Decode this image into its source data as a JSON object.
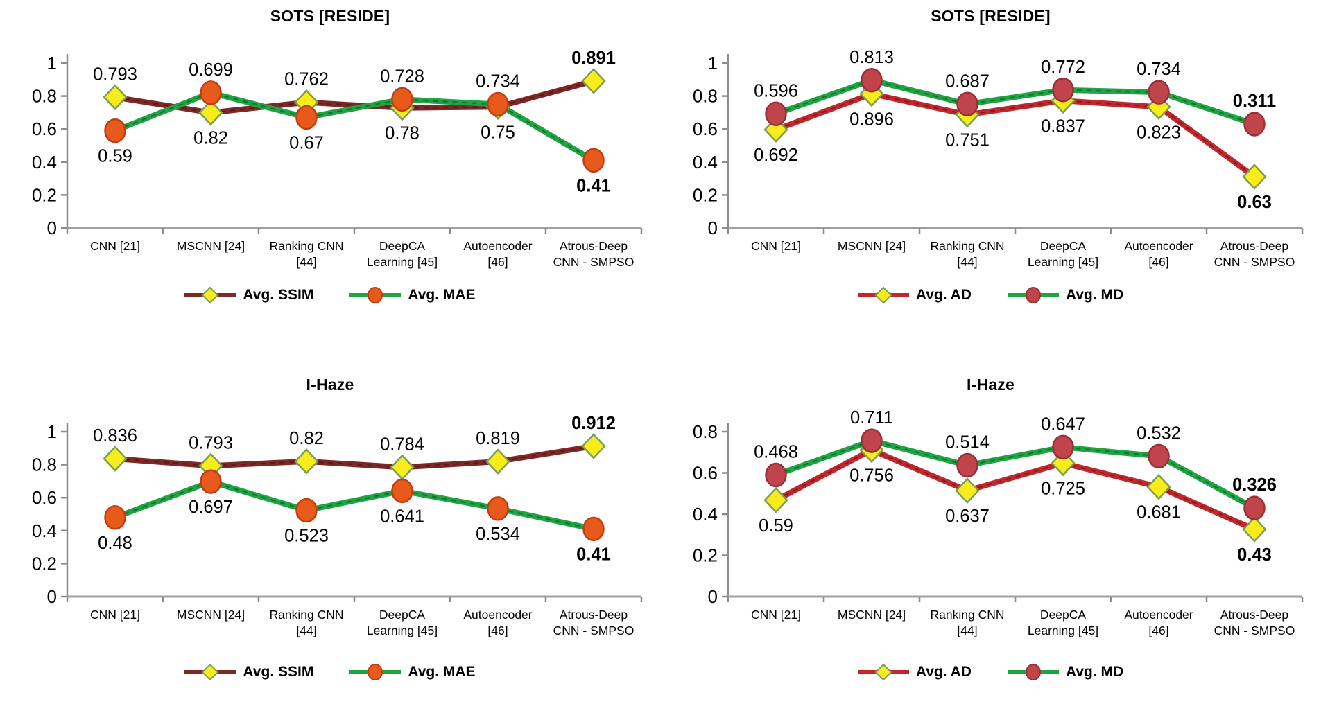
{
  "page": {
    "background": "#ffffff"
  },
  "chart_data": [
    {
      "type": "line",
      "title": "SOTS [RESIDE]",
      "categories": [
        [
          "CNN [21]"
        ],
        [
          "MSCNN [24]"
        ],
        [
          "Ranking CNN",
          "[44]"
        ],
        [
          "DeepCA",
          "Learning [45]"
        ],
        [
          "Autoencoder",
          "[46]"
        ],
        [
          "Atrous-Deep",
          "CNN - SMPSO"
        ]
      ],
      "ylim": [
        0,
        1
      ],
      "yticks": [
        0,
        0.2,
        0.4,
        0.6,
        0.8,
        1
      ],
      "grid": false,
      "legend_position": "bottom",
      "last_point_bold": true,
      "series": [
        {
          "name": "Avg. SSIM",
          "values": [
            0.793,
            0.699,
            0.762,
            0.728,
            0.734,
            0.891
          ],
          "line_color": "#7d2826",
          "marker": "diamond",
          "marker_fill": "#f8ec1a",
          "marker_stroke": "#7b9e55",
          "data_label_position": "above"
        },
        {
          "name": "Avg. MAE",
          "values": [
            0.59,
            0.82,
            0.67,
            0.78,
            0.75,
            0.41
          ],
          "line_color": "#1ea442",
          "marker": "circle",
          "marker_fill": "#e8591c",
          "marker_stroke": "#bf3f12",
          "data_label_position": "below"
        }
      ]
    },
    {
      "type": "line",
      "title": "SOTS [RESIDE]",
      "categories": [
        [
          "CNN [21]"
        ],
        [
          "MSCNN [24]"
        ],
        [
          "Ranking CNN",
          "[44]"
        ],
        [
          "DeepCA",
          "Learning [45]"
        ],
        [
          "Autoencoder",
          "[46]"
        ],
        [
          "Atrous-Deep",
          "CNN - SMPSO"
        ]
      ],
      "ylim": [
        0,
        1
      ],
      "yticks": [
        0,
        0.2,
        0.4,
        0.6,
        0.8,
        1
      ],
      "grid": false,
      "legend_position": "bottom",
      "last_point_bold": true,
      "series": [
        {
          "name": "Avg. AD",
          "values": [
            0.596,
            0.813,
            0.687,
            0.772,
            0.734,
            0.311
          ],
          "line_color": "#c1272d",
          "marker": "diamond",
          "marker_fill": "#f8ec1a",
          "marker_stroke": "#7b9e55",
          "data_label_position": "above"
        },
        {
          "name": "Avg. MD",
          "values": [
            0.692,
            0.896,
            0.751,
            0.837,
            0.823,
            0.63
          ],
          "line_color": "#1ea442",
          "marker": "circle",
          "marker_fill": "#c2444b",
          "marker_stroke": "#96303a",
          "data_label_position": "below"
        }
      ]
    },
    {
      "type": "line",
      "title": "I-Haze",
      "categories": [
        [
          "CNN [21]"
        ],
        [
          "MSCNN [24]"
        ],
        [
          "Ranking CNN",
          "[44]"
        ],
        [
          "DeepCA",
          "Learning [45]"
        ],
        [
          "Autoencoder",
          "[46]"
        ],
        [
          "Atrous-Deep",
          "CNN - SMPSO"
        ]
      ],
      "ylim": [
        0,
        1
      ],
      "yticks": [
        0,
        0.2,
        0.4,
        0.6,
        0.8,
        1
      ],
      "grid": false,
      "legend_position": "bottom",
      "last_point_bold": true,
      "series": [
        {
          "name": "Avg. SSIM",
          "values": [
            0.836,
            0.793,
            0.82,
            0.784,
            0.819,
            0.912
          ],
          "line_color": "#7d2826",
          "marker": "diamond",
          "marker_fill": "#f8ec1a",
          "marker_stroke": "#7b9e55",
          "data_label_position": "above"
        },
        {
          "name": "Avg. MAE",
          "values": [
            0.48,
            0.697,
            0.523,
            0.641,
            0.534,
            0.41
          ],
          "line_color": "#1ea442",
          "marker": "circle",
          "marker_fill": "#e8591c",
          "marker_stroke": "#bf3f12",
          "data_label_position": "below"
        }
      ]
    },
    {
      "type": "line",
      "title": "I-Haze",
      "categories": [
        [
          "CNN [21]"
        ],
        [
          "MSCNN [24]"
        ],
        [
          "Ranking CNN",
          "[44]"
        ],
        [
          "DeepCA",
          "Learning [45]"
        ],
        [
          "Autoencoder",
          "[46]"
        ],
        [
          "Atrous-Deep",
          "CNN - SMPSO"
        ]
      ],
      "ylim": [
        0,
        0.8
      ],
      "yticks": [
        0,
        0.2,
        0.4,
        0.6,
        0.8
      ],
      "grid": false,
      "legend_position": "bottom",
      "last_point_bold": true,
      "series": [
        {
          "name": "Avg. AD",
          "values": [
            0.468,
            0.711,
            0.514,
            0.647,
            0.532,
            0.326
          ],
          "line_color": "#c1272d",
          "marker": "diamond",
          "marker_fill": "#f8ec1a",
          "marker_stroke": "#7b9e55",
          "data_label_position": "above"
        },
        {
          "name": "Avg. MD",
          "values": [
            0.59,
            0.756,
            0.637,
            0.725,
            0.681,
            0.43
          ],
          "line_color": "#1ea442",
          "marker": "circle",
          "marker_fill": "#c2444b",
          "marker_stroke": "#96303a",
          "data_label_position": "below"
        }
      ]
    }
  ]
}
